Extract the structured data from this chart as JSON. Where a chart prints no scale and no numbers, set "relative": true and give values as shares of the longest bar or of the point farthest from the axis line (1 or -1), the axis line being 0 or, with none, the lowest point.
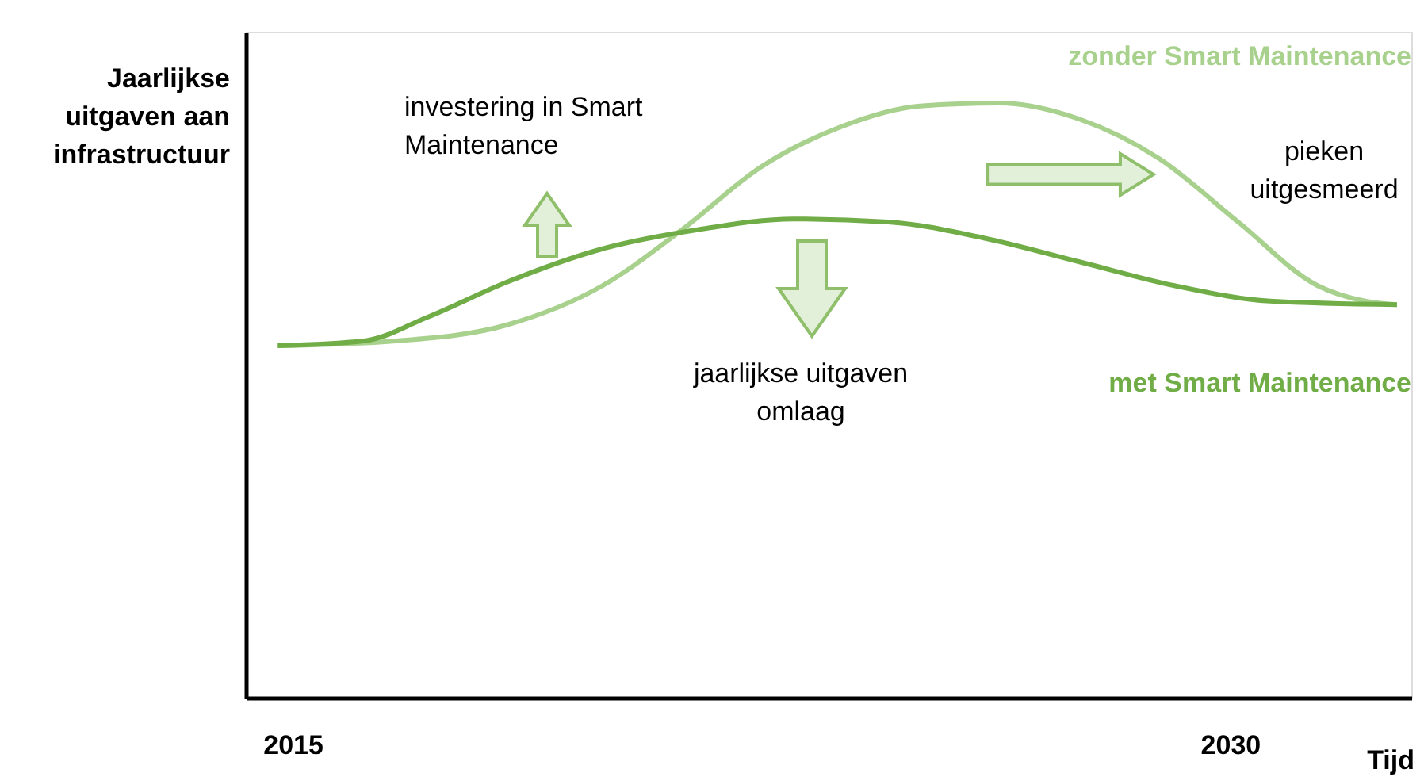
{
  "chart_data": {
    "type": "line",
    "relative": true,
    "ylabel": "Jaarlijkse\nuitgaven aan\ninfrastructuur",
    "xlabel": "Tijd",
    "xlim": [
      2014.25,
      2032.9
    ],
    "xticks": [
      2015,
      2030
    ],
    "tick_labels": "x",
    "grid": false,
    "annotations": [
      "investering in Smart\nMaintenance",
      "jaarlijkse uitgaven\nomlaag",
      "pieken\nuitgesmeerd"
    ],
    "series": [
      {
        "name": "zonder Smart Maintenance",
        "color": "#a9d18e",
        "x": [
          2014.75,
          2016.65,
          2018.43,
          2019.96,
          2021.23,
          2022.5,
          2023.77,
          2025.04,
          2026.31,
          2027.59,
          2028.86,
          2030.13,
          2031.4,
          2032.16,
          2032.67
        ],
        "values": [
          0.592,
          0.6,
          0.627,
          0.693,
          0.787,
          0.893,
          0.96,
          0.995,
          1.0,
          0.973,
          0.907,
          0.8,
          0.693,
          0.667,
          0.661
        ]
      },
      {
        "name": "met Smart Maintenance",
        "color": "#70ad47",
        "x": [
          2014.75,
          2016.14,
          2017.16,
          2018.43,
          2019.96,
          2021.48,
          2023.01,
          2024.53,
          2026.06,
          2027.59,
          2029.11,
          2030.64,
          2032.67
        ],
        "values": [
          0.592,
          0.6,
          0.64,
          0.699,
          0.755,
          0.787,
          0.805,
          0.8,
          0.773,
          0.733,
          0.693,
          0.667,
          0.661
        ]
      }
    ]
  }
}
